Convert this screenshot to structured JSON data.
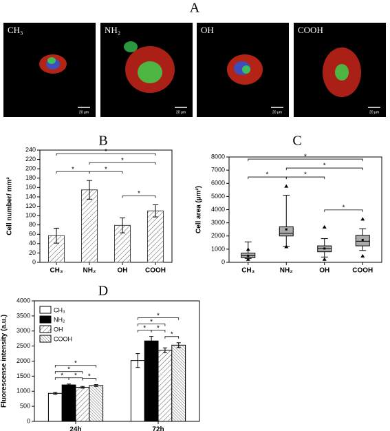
{
  "figure_panel": {
    "label": "A",
    "images": [
      {
        "label": "CH₃",
        "scale_bar": "20 µm"
      },
      {
        "label": "NH₂",
        "scale_bar": "20 µm"
      },
      {
        "label": "OH",
        "scale_bar": "20 µm"
      },
      {
        "label": "COOH",
        "scale_bar": "20 µm"
      }
    ]
  },
  "chart_data": [
    {
      "type": "bar",
      "title": "B",
      "ylabel": "Cell number/ mm²",
      "categories": [
        "CH₃",
        "NH₂",
        "OH",
        "COOH"
      ],
      "values": [
        57,
        155,
        79,
        110
      ],
      "errors": [
        16,
        20,
        16,
        13
      ],
      "color": "#555555",
      "pattern": "hatch",
      "ylim": [
        0,
        240
      ],
      "yticks": [
        0,
        20,
        40,
        60,
        80,
        100,
        120,
        140,
        160,
        180,
        200,
        220,
        240
      ],
      "annotations": [
        {
          "text": "*",
          "between": [
            "OH",
            "COOH"
          ]
        },
        {
          "text": "*",
          "between": [
            "NH₂",
            "OH"
          ]
        },
        {
          "text": "*",
          "between": [
            "CH₃",
            "NH₂"
          ]
        },
        {
          "text": "*",
          "between": [
            "NH₂",
            "COOH"
          ]
        },
        {
          "text": "*",
          "between": [
            "CH₃",
            "COOH"
          ]
        }
      ]
    },
    {
      "type": "box",
      "title": "C",
      "ylabel": "Cell area (µm²)",
      "categories": [
        "CH₃",
        "NH₂",
        "OH",
        "COOH"
      ],
      "boxes": [
        {
          "whisker_low": 300,
          "q1": 350,
          "median": 500,
          "q3": 700,
          "whisker_high": 1550,
          "mean": 500,
          "min": 250,
          "max": 1000
        },
        {
          "whisker_low": 1200,
          "q1": 2000,
          "median": 2200,
          "q3": 2700,
          "whisker_high": 5100,
          "mean": 2500,
          "min": 1200,
          "max": 5800
        },
        {
          "whisker_low": 400,
          "q1": 800,
          "median": 1050,
          "q3": 1250,
          "whisker_high": 1800,
          "mean": 1050,
          "min": 250,
          "max": 2700
        },
        {
          "whisker_low": 900,
          "q1": 1250,
          "median": 1600,
          "q3": 2050,
          "whisker_high": 2550,
          "mean": 1700,
          "min": 500,
          "max": 3300
        }
      ],
      "color": "#aaaaaa",
      "ylim": [
        0,
        8000
      ],
      "yticks": [
        0,
        1000,
        2000,
        3000,
        4000,
        5000,
        6000,
        7000,
        8000
      ],
      "annotations": [
        {
          "text": "*",
          "between": [
            "OH",
            "COOH"
          ]
        },
        {
          "text": "*",
          "between": [
            "NH₂",
            "OH"
          ]
        },
        {
          "text": "*",
          "between": [
            "CH₃",
            "NH₂"
          ]
        },
        {
          "text": "*",
          "between": [
            "NH₂",
            "COOH"
          ]
        },
        {
          "text": "*",
          "between": [
            "CH₃",
            "COOH"
          ]
        }
      ]
    },
    {
      "type": "bar",
      "title": "D",
      "ylabel": "Fluorescense intensity (a.u.)",
      "categories": [
        "24h",
        "72h"
      ],
      "legend": "upper left",
      "series": [
        {
          "name": "CH₃",
          "color": "#ffffff",
          "pattern": "solid",
          "values": [
            930,
            2020
          ],
          "errors": [
            30,
            230
          ]
        },
        {
          "name": "NH₂",
          "color": "#000000",
          "pattern": "solid",
          "values": [
            1210,
            2670
          ],
          "errors": [
            30,
            150
          ]
        },
        {
          "name": "OH",
          "color": "#ffffff",
          "pattern": "hatch",
          "values": [
            1130,
            2360
          ],
          "errors": [
            30,
            80
          ]
        },
        {
          "name": "COOH",
          "color": "#ffffff",
          "pattern": "dense-hatch",
          "values": [
            1190,
            2530
          ],
          "errors": [
            30,
            80
          ]
        }
      ],
      "ylim": [
        0,
        4000
      ],
      "yticks": [
        0,
        500,
        1000,
        1500,
        2000,
        2500,
        3000,
        3500,
        4000
      ],
      "annotations": [
        {
          "text": "*",
          "group": "24h",
          "between": [
            "CH₃",
            "NH₂"
          ]
        },
        {
          "text": "*",
          "group": "24h",
          "between": [
            "NH₂",
            "OH"
          ]
        },
        {
          "text": "*",
          "group": "24h",
          "between": [
            "OH",
            "COOH"
          ]
        },
        {
          "text": "*",
          "group": "24h",
          "between": [
            "CH₃",
            "OH"
          ]
        },
        {
          "text": "*",
          "group": "24h",
          "between": [
            "CH₃",
            "COOH"
          ]
        },
        {
          "text": "*",
          "group": "72h",
          "between": [
            "CH₃",
            "NH₂"
          ]
        },
        {
          "text": "*",
          "group": "72h",
          "between": [
            "NH₂",
            "OH"
          ]
        },
        {
          "text": "*",
          "group": "72h",
          "between": [
            "OH",
            "COOH"
          ]
        },
        {
          "text": "*",
          "group": "72h",
          "between": [
            "CH₃",
            "OH"
          ]
        },
        {
          "text": "*",
          "group": "72h",
          "between": [
            "CH₃",
            "COOH"
          ]
        }
      ]
    }
  ]
}
